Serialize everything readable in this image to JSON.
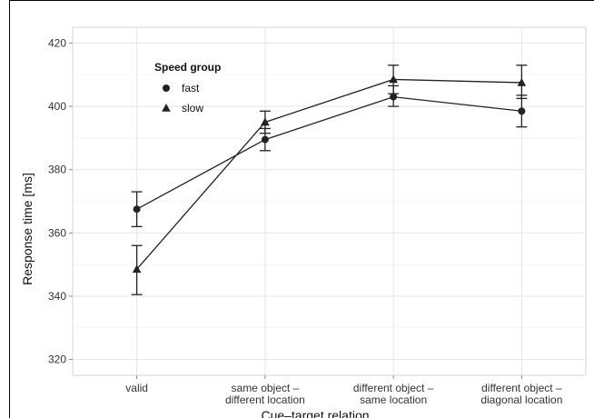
{
  "chart_data": {
    "type": "line",
    "title": "",
    "xlabel": "Cue–target relation",
    "ylabel": "Response time [ms]",
    "ylim": [
      315,
      425
    ],
    "yticks": [
      320,
      340,
      360,
      380,
      400,
      420
    ],
    "categories": [
      [
        "valid"
      ],
      [
        "same object –",
        "different location"
      ],
      [
        "different object –",
        "same location"
      ],
      [
        "different object –",
        "diagonal location"
      ]
    ],
    "grid": true,
    "legend": {
      "title": "Speed group",
      "position": "top-left",
      "entries": [
        {
          "label": "fast",
          "marker": "circle"
        },
        {
          "label": "slow",
          "marker": "triangle"
        }
      ]
    },
    "series": [
      {
        "name": "fast",
        "marker": "circle",
        "values": [
          367.5,
          389.5,
          403,
          398.5
        ],
        "error_low": [
          362,
          386,
          400,
          393.5
        ],
        "error_high": [
          373,
          393,
          406.5,
          403.5
        ]
      },
      {
        "name": "slow",
        "marker": "triangle",
        "values": [
          348.5,
          395,
          408.5,
          407.5
        ],
        "error_low": [
          340.5,
          391.5,
          404,
          402.5
        ],
        "error_high": [
          356,
          398.5,
          413,
          413
        ]
      }
    ],
    "colors": {
      "line": "#222222",
      "grid": "#e6e6e6",
      "axis_text": "#333333"
    }
  }
}
